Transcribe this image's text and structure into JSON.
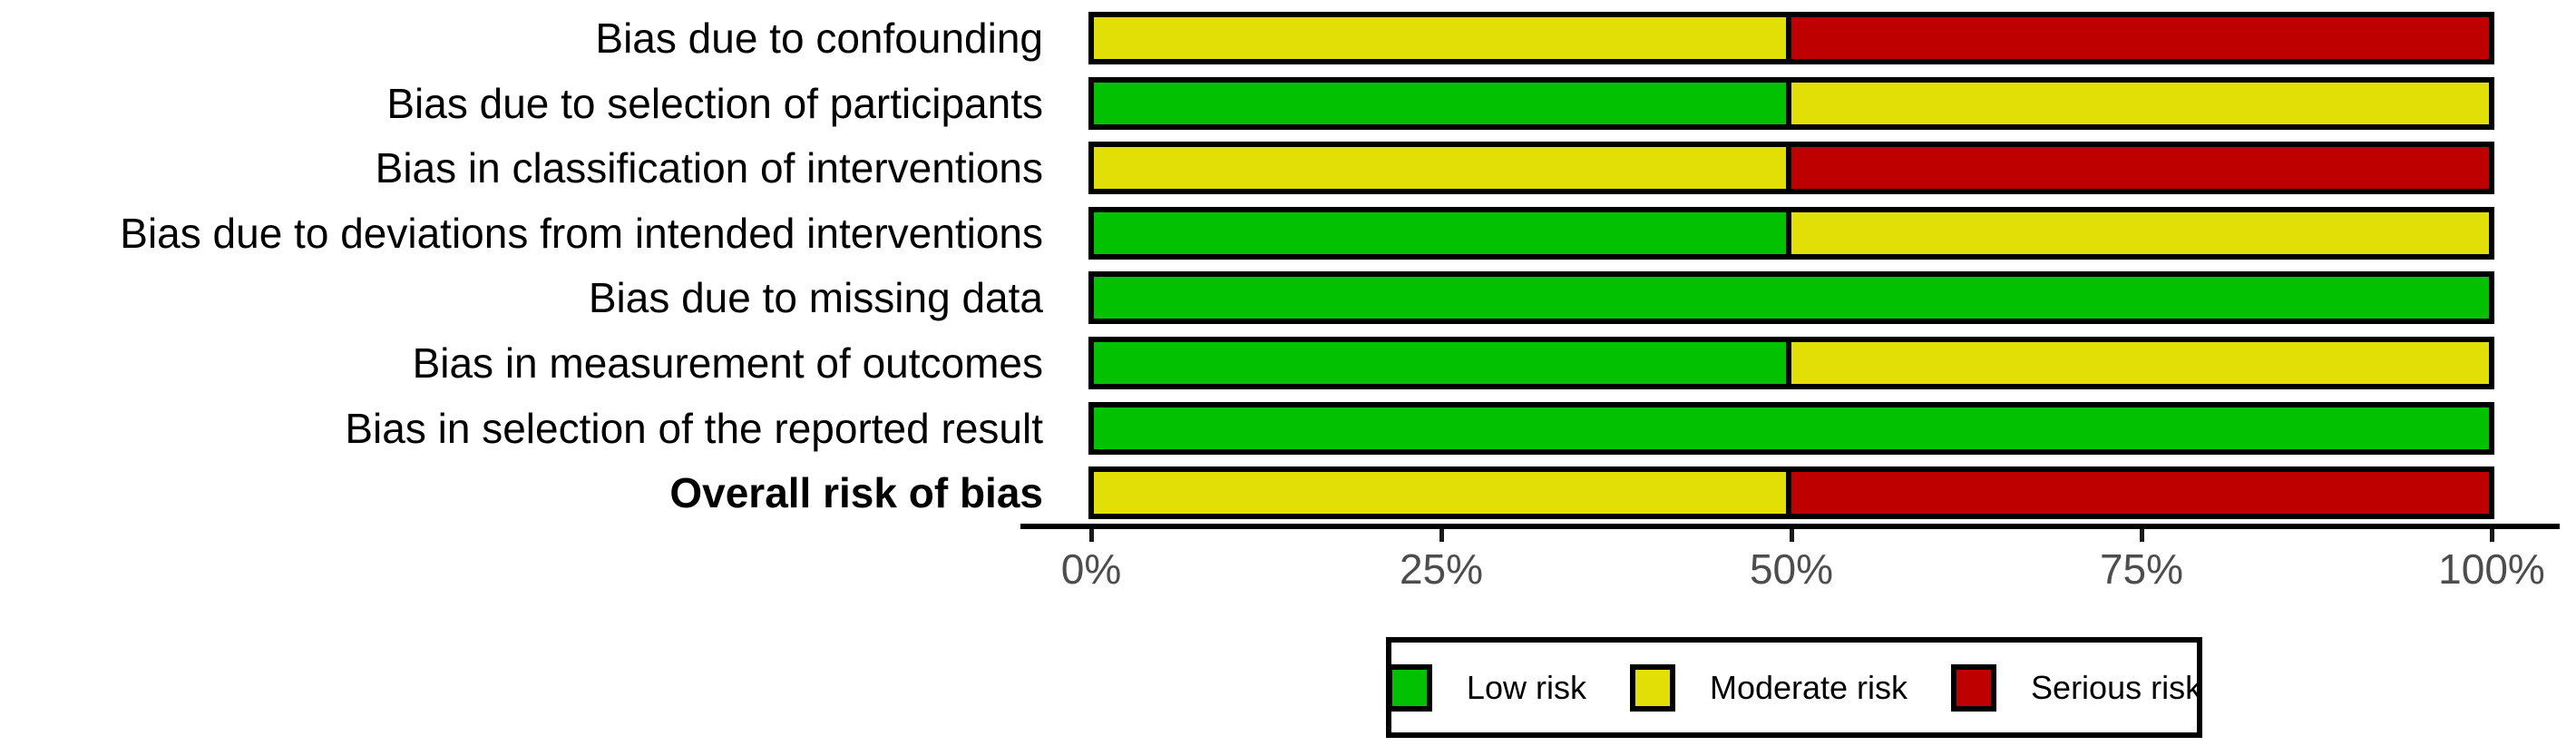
{
  "chart_data": {
    "type": "bar",
    "stacked": true,
    "orientation": "horizontal",
    "title": "",
    "xlabel": "",
    "ylabel": "",
    "categories": [
      "Bias due to confounding",
      "Bias due to selection of participants",
      "Bias in classification of interventions",
      "Bias due to deviations from intended interventions",
      "Bias due to missing data",
      "Bias in measurement of outcomes",
      "Bias in selection of the reported result",
      "Overall risk of bias"
    ],
    "bold_category": "Overall risk of bias",
    "series": [
      {
        "name": "Low risk",
        "color": "#02C100",
        "values": [
          0,
          50,
          0,
          50,
          100,
          50,
          100,
          0
        ]
      },
      {
        "name": "Moderate risk",
        "color": "#E2DF07",
        "values": [
          50,
          50,
          50,
          50,
          0,
          50,
          0,
          50
        ]
      },
      {
        "name": "Serious risk",
        "color": "#BF0000",
        "values": [
          50,
          0,
          50,
          0,
          0,
          0,
          0,
          50
        ]
      }
    ],
    "x_axis": {
      "range": [
        0,
        100
      ],
      "ticks": [
        {
          "value": 0,
          "label": "0%"
        },
        {
          "value": 25,
          "label": "25%"
        },
        {
          "value": 50,
          "label": "50%"
        },
        {
          "value": 75,
          "label": "75%"
        },
        {
          "value": 100,
          "label": "100%"
        }
      ]
    },
    "legend": {
      "position": "bottom",
      "items": [
        {
          "label": "Low risk",
          "color": "#02C100"
        },
        {
          "label": "Moderate risk",
          "color": "#E2DF07"
        },
        {
          "label": "Serious risk",
          "color": "#BF0000"
        }
      ]
    },
    "styles": {
      "bar_border_color": "#000000",
      "axis_line_color": "#000000",
      "tick_label_color": "#4d4d4d",
      "category_label_color": "#000000",
      "background": "#ffffff",
      "grid": "off"
    }
  }
}
